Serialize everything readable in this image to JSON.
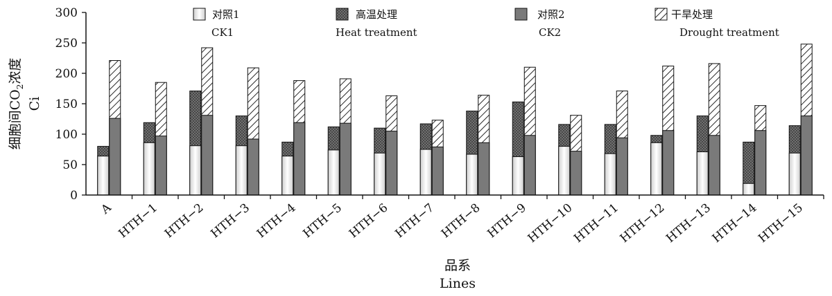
{
  "chart_data": {
    "type": "bar",
    "subtype": "grouped-stacked",
    "categories": [
      "A",
      "HTH−1",
      "HTH−2",
      "HTH−3",
      "HTH−4",
      "HTH−5",
      "HTH−6",
      "HTH−7",
      "HTH−8",
      "HTH−9",
      "HTH−10",
      "HTH−11",
      "HTH−12",
      "HTH−13",
      "HTH−14",
      "HTH−15"
    ],
    "series": [
      {
        "name": "对照1",
        "name_en": "CK1",
        "stack": "left",
        "fill": "gradient-white",
        "values": [
          64,
          86,
          81,
          81,
          64,
          74,
          69,
          75,
          67,
          63,
          80,
          68,
          86,
          71,
          19,
          69
        ]
      },
      {
        "name": "高温处理",
        "name_en": "Heat treatment",
        "stack": "left",
        "fill": "dotted-dark",
        "values": [
          80,
          119,
          171,
          130,
          87,
          112,
          110,
          117,
          138,
          153,
          116,
          116,
          98,
          130,
          87,
          114
        ]
      },
      {
        "name": "对照2",
        "name_en": "CK2",
        "stack": "right",
        "fill": "solid-gray",
        "values": [
          126,
          97,
          131,
          92,
          119,
          118,
          105,
          79,
          86,
          98,
          72,
          94,
          106,
          98,
          106,
          130
        ]
      },
      {
        "name": "干旱处理",
        "name_en": "Drought treatment",
        "stack": "right",
        "fill": "hatched",
        "values": [
          221,
          185,
          242,
          209,
          188,
          191,
          163,
          123,
          164,
          210,
          131,
          171,
          212,
          216,
          147,
          248
        ]
      }
    ],
    "ylim": [
      0,
      300
    ],
    "yticks": [
      0,
      50,
      100,
      150,
      200,
      250,
      300
    ],
    "ylabel_cn": "细胞间CO",
    "ylabel_sub": "2",
    "ylabel_cn_tail": "浓度",
    "ylabel_en": "Ci",
    "xlabel_cn": "品系",
    "xlabel_en": "Lines",
    "legend_position": "top",
    "colors": {
      "ck2": "#7a7a7a",
      "heat": "#6f6f6f",
      "axis": "#111111"
    }
  }
}
